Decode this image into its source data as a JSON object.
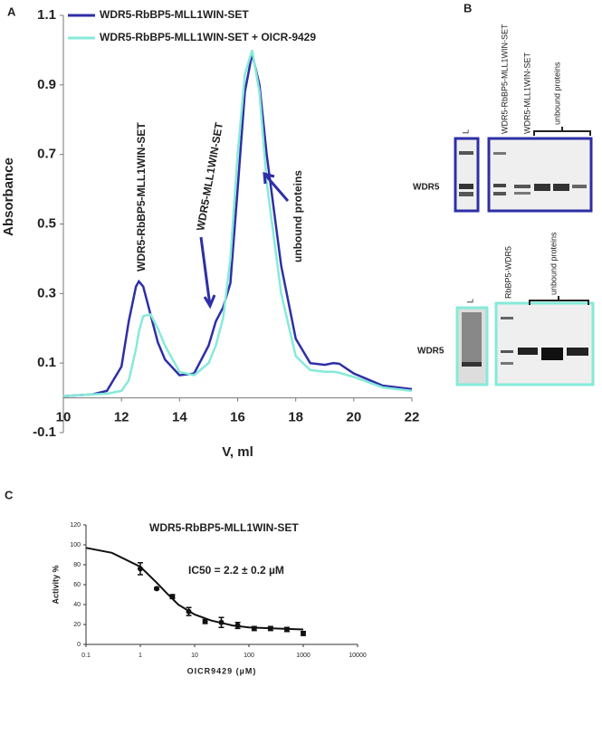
{
  "chart_data": [
    {
      "type": "line",
      "panel": "A",
      "x_label": "V, ml",
      "y_label": "Absorbance",
      "x": [
        10,
        11,
        11.5,
        12,
        12.25,
        12.5,
        12.6,
        12.75,
        13,
        13.25,
        13.5,
        14,
        14.5,
        15,
        15.25,
        15.5,
        15.75,
        16,
        16.25,
        16.5,
        16.75,
        17,
        17.5,
        18,
        18.5,
        19,
        19.3,
        19.5,
        20,
        21,
        22
      ],
      "series": [
        {
          "name": "WDR5-RbBP5-MLL1WIN-SET",
          "color": "#2e2fa6",
          "values": [
            0.005,
            0.01,
            0.02,
            0.09,
            0.22,
            0.32,
            0.335,
            0.32,
            0.24,
            0.16,
            0.11,
            0.065,
            0.07,
            0.15,
            0.22,
            0.26,
            0.33,
            0.6,
            0.88,
            0.99,
            0.9,
            0.7,
            0.38,
            0.17,
            0.1,
            0.095,
            0.1,
            0.098,
            0.07,
            0.035,
            0.025
          ]
        },
        {
          "name": "WDR5-RbBP5-MLL1WIN-SET + OICR-9429",
          "color": "#86ead9",
          "values": [
            0.005,
            0.01,
            0.012,
            0.02,
            0.05,
            0.14,
            0.19,
            0.235,
            0.24,
            0.2,
            0.15,
            0.075,
            0.065,
            0.1,
            0.15,
            0.23,
            0.4,
            0.7,
            0.93,
            1.0,
            0.88,
            0.62,
            0.3,
            0.12,
            0.08,
            0.075,
            0.075,
            0.072,
            0.06,
            0.03,
            0.02
          ]
        }
      ],
      "xlim": [
        10,
        22
      ],
      "xticks": [
        10,
        12,
        14,
        16,
        18,
        20,
        22
      ],
      "ylim": [
        -0.1,
        1.1
      ],
      "yticks": [
        -0.1,
        0.1,
        0.3,
        0.5,
        0.7,
        0.9,
        1.1
      ],
      "legend": "upper left",
      "annotations": [
        "WDR5-RbBP5-MLL1WIN-SET",
        "WDR5-MLL1WIN-SET",
        "unbound proteins"
      ]
    },
    {
      "type": "scatter",
      "panel": "C",
      "title": "WDR5-RbBP5-MLL1WIN-SET",
      "annotation": "IC50 = 2.2 ± 0.2 µM",
      "x_label": "OICR9429 (µM)",
      "y_label": "Activity %",
      "log_x": true,
      "color": "#111111",
      "x": [
        1,
        2,
        3.9,
        7.8,
        15.6,
        31,
        62,
        125,
        250,
        500,
        1000
      ],
      "values": [
        76,
        56,
        48,
        33,
        23,
        22,
        19,
        16,
        16,
        15,
        11
      ],
      "errors": [
        6,
        1,
        2,
        4,
        2,
        5,
        3,
        2,
        2,
        2,
        2
      ],
      "fit": {
        "x": [
          0.1,
          0.3,
          1,
          2,
          3,
          5,
          10,
          20,
          50,
          100,
          300,
          1000
        ],
        "values": [
          97,
          92,
          78,
          62,
          52,
          40,
          30,
          24,
          19,
          17,
          16,
          15
        ]
      },
      "xlim": [
        0.1,
        10000
      ],
      "xticks": [
        0.1,
        1,
        10,
        100,
        1000,
        10000
      ],
      "ylim": [
        0,
        120
      ],
      "yticks": [
        0,
        20,
        40,
        60,
        80,
        100,
        120
      ]
    }
  ],
  "panel_b": {
    "label": "B",
    "top": {
      "ladder": "L",
      "lanes": [
        "WDR5-RbBP5-MLL1WIN-SET",
        "WDR5-MLL1WIN-SET"
      ],
      "bracket": "unbound proteins",
      "band": "WDR5"
    },
    "bottom": {
      "ladder": "L",
      "lanes": [
        "RbBP5-WDR5"
      ],
      "bracket": "unbound proteins",
      "band": "WDR5"
    }
  }
}
